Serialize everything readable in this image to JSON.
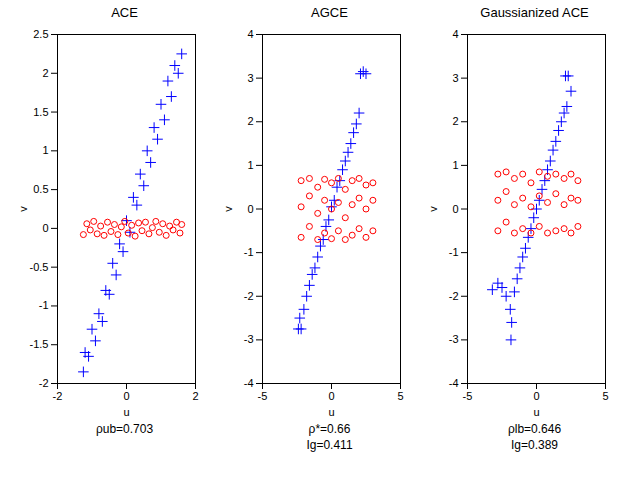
{
  "chart_data": [
    {
      "type": "scatter",
      "title": "ACE",
      "xlabel": "u",
      "ylabel": "v",
      "xlim": [
        -2,
        2
      ],
      "xticks": [
        -2,
        0,
        2
      ],
      "ylim": [
        -2,
        2.5
      ],
      "yticks": [
        -2,
        -1.5,
        -1,
        -0.5,
        0,
        0.5,
        1,
        1.5,
        2,
        2.5
      ],
      "annotations": [
        "ρub=0.703"
      ],
      "series": [
        {
          "color": "#0000ff",
          "marker": "plus",
          "x": [
            -1.25,
            -1.2,
            -1.1,
            -1.0,
            -0.9,
            -0.8,
            -0.7,
            -0.6,
            -0.5,
            -0.4,
            -0.3,
            -0.2,
            -0.1,
            0,
            0.1,
            0.2,
            0.3,
            0.4,
            0.5,
            0.6,
            0.7,
            0.8,
            0.9,
            1.0,
            1.1,
            1.2,
            1.3,
            1.4,
            1.5,
            1.6
          ],
          "y": [
            -1.85,
            -1.6,
            -1.65,
            -1.3,
            -1.45,
            -1.1,
            -1.2,
            -0.8,
            -0.85,
            -0.45,
            -0.6,
            -0.2,
            -0.3,
            0.1,
            -0.05,
            0.4,
            0.3,
            0.7,
            0.55,
            1.0,
            0.85,
            1.3,
            1.15,
            1.6,
            1.4,
            1.9,
            1.7,
            2.1,
            2.0,
            2.25
          ]
        },
        {
          "color": "#ff0000",
          "marker": "circle",
          "x": [
            -1.25,
            -1.15,
            -1.05,
            -0.95,
            -0.85,
            -0.75,
            -0.65,
            -0.55,
            -0.45,
            -0.35,
            -0.25,
            -0.15,
            -0.05,
            0.05,
            0.15,
            0.25,
            0.35,
            0.45,
            0.55,
            0.65,
            0.75,
            0.85,
            0.95,
            1.05,
            1.15,
            1.25,
            1.35,
            1.45,
            1.55,
            1.6
          ],
          "y": [
            -0.08,
            0.06,
            -0.02,
            0.09,
            -0.07,
            0.03,
            -0.09,
            0.08,
            -0.04,
            0.05,
            -0.08,
            0.02,
            0.09,
            -0.06,
            0.04,
            -0.1,
            0.07,
            -0.03,
            0.08,
            -0.07,
            0.01,
            0.09,
            -0.05,
            0.06,
            -0.09,
            0.03,
            -0.02,
            0.08,
            -0.06,
            0.05
          ]
        }
      ]
    },
    {
      "type": "scatter",
      "title": "AGCE",
      "xlabel": "u",
      "ylabel": "v",
      "xlim": [
        -5,
        5
      ],
      "xticks": [
        -5,
        0,
        5
      ],
      "ylim": [
        -4,
        4
      ],
      "yticks": [
        -4,
        -3,
        -2,
        -1,
        0,
        1,
        2,
        3,
        4
      ],
      "annotations": [
        "ρ*=0.66",
        "Ig=0.411"
      ],
      "series": [
        {
          "color": "#0000ff",
          "marker": "plus",
          "x": [
            -2.4,
            -2.2,
            -2.3,
            -2.0,
            -1.8,
            -1.6,
            -1.4,
            -1.2,
            -1.0,
            -0.8,
            -0.6,
            -0.4,
            -0.2,
            0,
            0.2,
            0.4,
            0.6,
            0.8,
            1.0,
            1.2,
            1.4,
            1.6,
            1.8,
            2.0,
            2.1,
            2.3,
            2.5
          ],
          "y": [
            -2.75,
            -2.75,
            -2.5,
            -2.3,
            -2.0,
            -1.75,
            -1.5,
            -1.35,
            -1.1,
            -0.85,
            -0.7,
            -0.4,
            -0.25,
            0.05,
            0.2,
            0.5,
            0.65,
            0.9,
            1.1,
            1.3,
            1.5,
            1.75,
            1.95,
            2.2,
            3.1,
            3.15,
            3.1
          ]
        },
        {
          "color": "#ff0000",
          "marker": "circle",
          "x": [
            -2.2,
            -2.2,
            -2.2,
            -1.6,
            -1.6,
            -1.6,
            -1.0,
            -1.0,
            -1.0,
            -0.5,
            -0.5,
            -0.5,
            0,
            0,
            0,
            0.5,
            0.5,
            0.5,
            1.0,
            1.0,
            1.0,
            1.5,
            1.5,
            1.5,
            2.0,
            2.0,
            2.0,
            2.5,
            2.5,
            2.5,
            3.0,
            3.0,
            3.0
          ],
          "y": [
            -0.65,
            0.05,
            0.65,
            -0.4,
            0.3,
            0.7,
            -0.7,
            -0.1,
            0.5,
            -0.55,
            0.2,
            0.68,
            -0.68,
            0,
            0.6,
            -0.5,
            0.15,
            0.7,
            -0.7,
            -0.2,
            0.45,
            -0.6,
            0.1,
            0.65,
            -0.45,
            0.25,
            0.7,
            -0.65,
            0,
            0.55,
            -0.5,
            0.2,
            0.6
          ]
        }
      ]
    },
    {
      "type": "scatter",
      "title": "Gaussianized ACE",
      "xlabel": "u",
      "ylabel": "v",
      "xlim": [
        -5,
        5
      ],
      "xticks": [
        -5,
        0,
        5
      ],
      "ylim": [
        -4,
        4
      ],
      "yticks": [
        -4,
        -3,
        -2,
        -1,
        0,
        1,
        2,
        3,
        4
      ],
      "annotations": [
        "ρlb=0.646",
        "Ig=0.389"
      ],
      "series": [
        {
          "color": "#0000ff",
          "marker": "plus",
          "x": [
            -3.2,
            -2.8,
            -2.5,
            -2.2,
            -1.9,
            -1.8,
            -1.85,
            -1.6,
            -1.4,
            -1.2,
            -1.0,
            -0.8,
            -0.6,
            -0.4,
            -0.2,
            0,
            0.2,
            0.4,
            0.6,
            0.8,
            1.0,
            1.2,
            1.4,
            1.6,
            1.8,
            2.0,
            2.2,
            2.1,
            2.3,
            2.5
          ],
          "y": [
            -1.85,
            -1.7,
            -1.8,
            -2.0,
            -2.3,
            -2.6,
            -3.0,
            -1.9,
            -1.6,
            -1.35,
            -1.1,
            -0.9,
            -0.65,
            -0.45,
            -0.2,
            0.0,
            0.2,
            0.45,
            0.65,
            0.9,
            1.1,
            1.35,
            1.55,
            1.8,
            2.0,
            2.2,
            2.35,
            3.05,
            3.05,
            2.7
          ]
        },
        {
          "color": "#ff0000",
          "marker": "circle",
          "x": [
            -2.8,
            -2.8,
            -2.8,
            -2.2,
            -2.2,
            -2.2,
            -1.6,
            -1.6,
            -1.6,
            -1.0,
            -1.0,
            -1.0,
            -0.4,
            -0.4,
            -0.4,
            0.2,
            0.2,
            0.2,
            0.8,
            0.8,
            0.8,
            1.4,
            1.4,
            1.4,
            2.0,
            2.0,
            2.0,
            2.5,
            2.5,
            2.5,
            3.0,
            3.0,
            3.0
          ],
          "y": [
            -0.5,
            0.2,
            0.8,
            -0.3,
            0.4,
            0.85,
            -0.55,
            0.1,
            0.7,
            -0.45,
            0.25,
            0.8,
            -0.55,
            0.05,
            0.6,
            -0.4,
            0.3,
            0.85,
            -0.55,
            0.15,
            0.75,
            -0.5,
            0.35,
            0.8,
            -0.45,
            0.1,
            0.7,
            -0.55,
            0.25,
            0.8,
            -0.4,
            0.2,
            0.65
          ]
        }
      ]
    }
  ]
}
